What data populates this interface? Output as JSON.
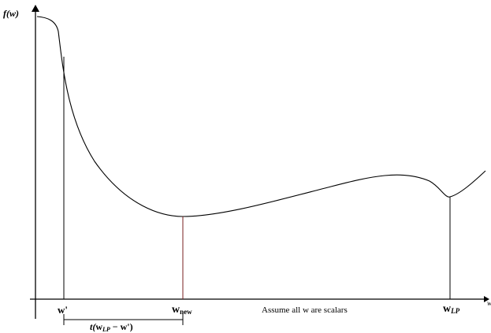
{
  "figure": {
    "y_axis_label": "f(w)",
    "x_axis_label": "w",
    "labels": {
      "w_prime": "w'",
      "w_new": "w",
      "w_new_sub": "new",
      "w_lp": "w",
      "w_lp_sub": "LP",
      "step_t": "t(",
      "step_w": "w",
      "step_sub": "LP",
      "step_tail": " − w')",
      "note": "Assume all w are scalars"
    },
    "colors": {
      "curve": "#000000",
      "axis": "#000000",
      "drop_w_new": "#7a1f1f",
      "drop_other": "#000000"
    }
  }
}
